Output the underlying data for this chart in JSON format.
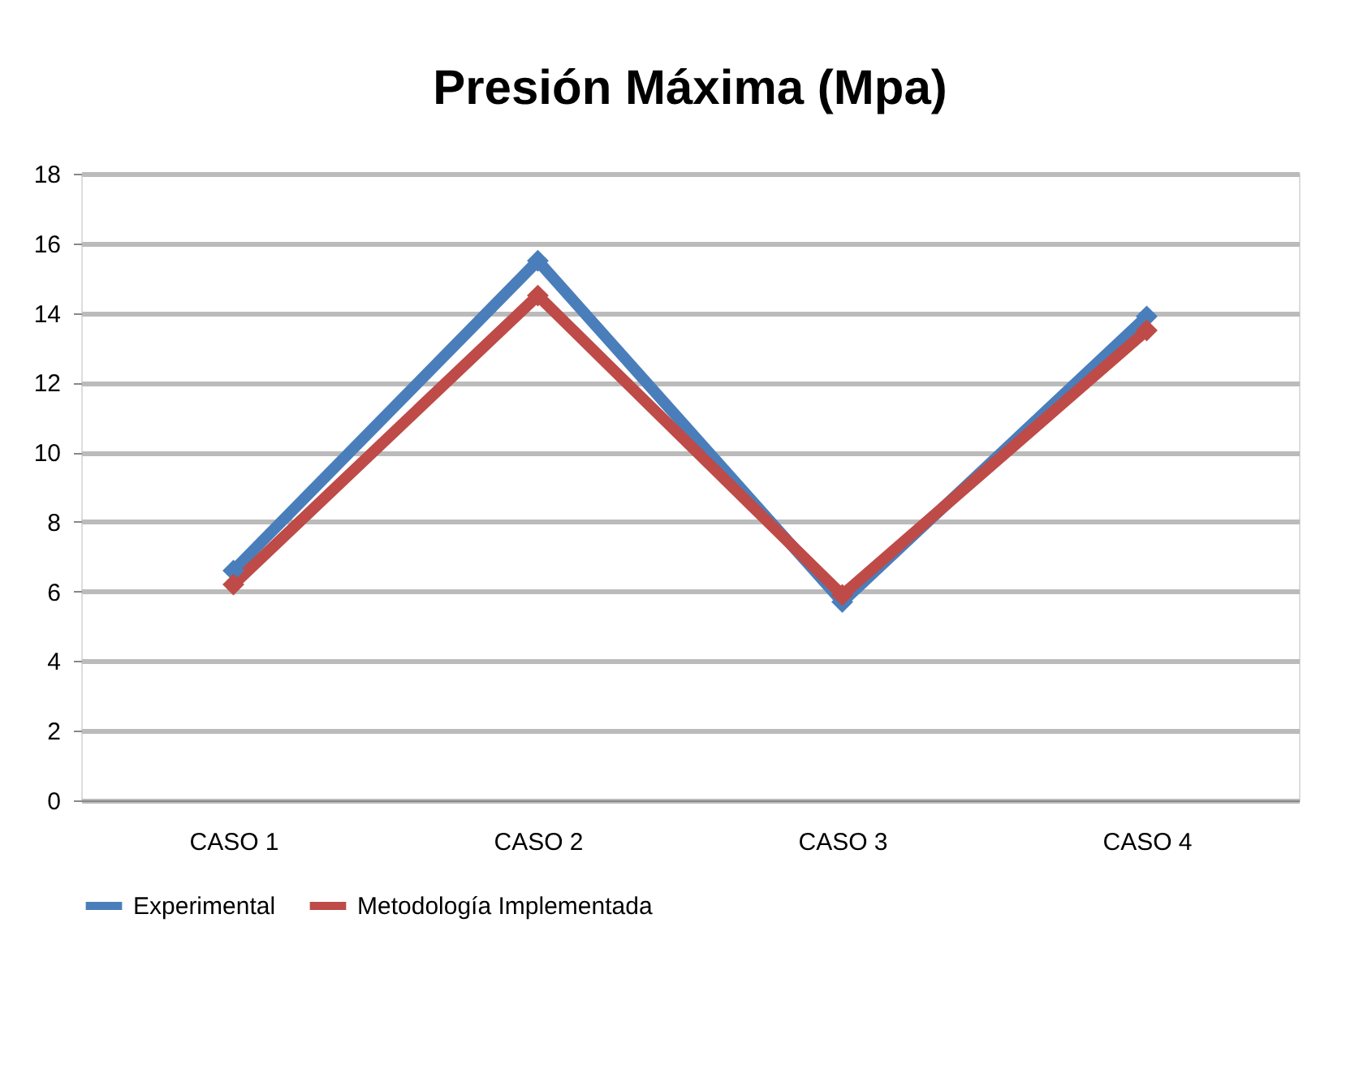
{
  "chart_data": {
    "type": "line",
    "title": "Presión Máxima (Mpa)",
    "categories": [
      "CASO 1",
      "CASO 2",
      "CASO 3",
      "CASO 4"
    ],
    "series": [
      {
        "name": "Experimental",
        "color": "#4a7ebb",
        "values": [
          6.6,
          15.5,
          5.7,
          13.9
        ]
      },
      {
        "name": "Metodología Implementada",
        "color": "#be4b48",
        "values": [
          6.2,
          14.5,
          5.9,
          13.5
        ]
      }
    ],
    "ylim": [
      0,
      18
    ],
    "yticks": [
      0,
      2,
      4,
      6,
      8,
      10,
      12,
      14,
      16,
      18
    ],
    "grid": "y",
    "legend": "bottom",
    "marker": "diamond",
    "line_style": "solid"
  }
}
